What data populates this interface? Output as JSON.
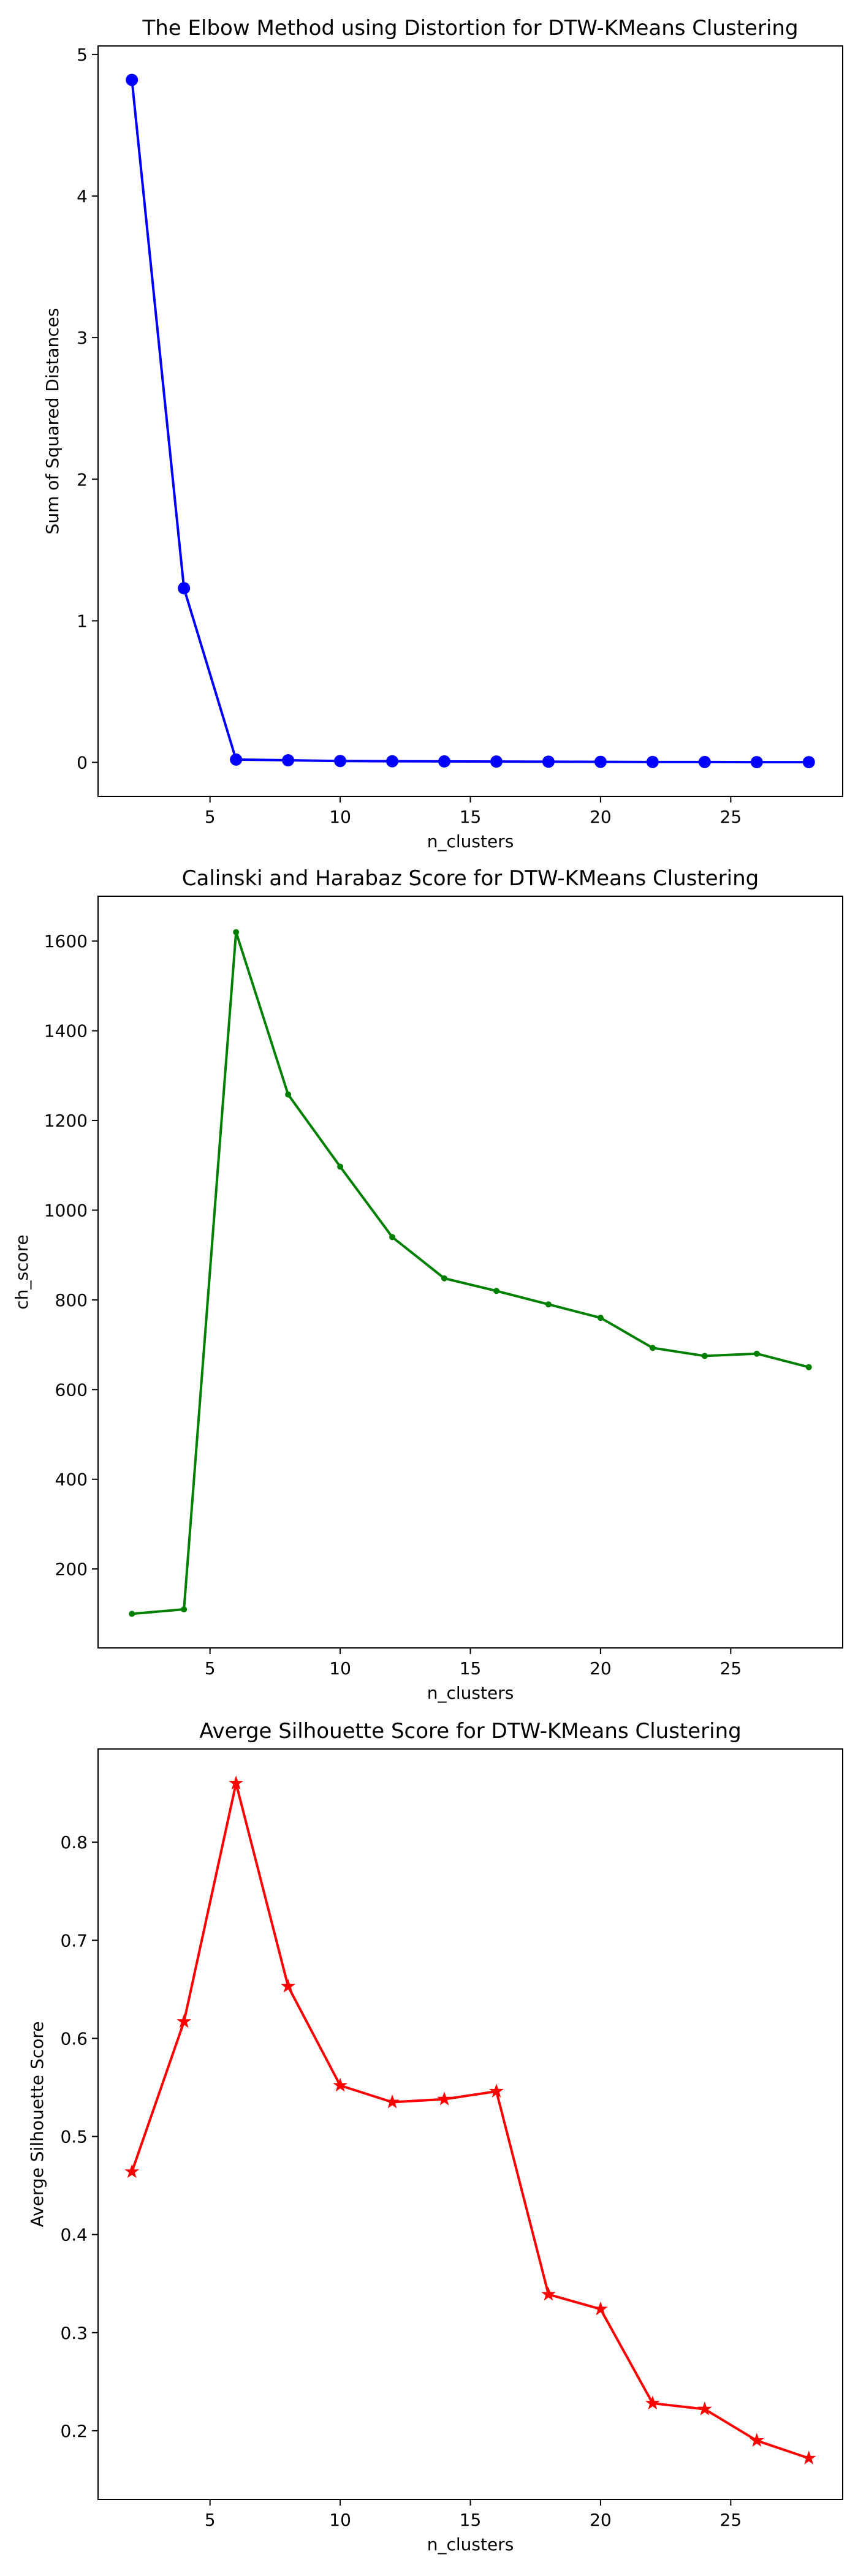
{
  "chart_data": [
    {
      "type": "line",
      "title": "The Elbow Method using Distortion for DTW-KMeans Clustering",
      "xlabel": "n_clusters",
      "ylabel": "Sum of Squared Distances",
      "xlim": [
        0.7,
        29.3
      ],
      "ylim": [
        -0.24,
        5.06
      ],
      "xticks": [
        5,
        10,
        15,
        20,
        25
      ],
      "yticks": [
        0,
        1,
        2,
        3,
        4,
        5
      ],
      "grid": false,
      "series": [
        {
          "color": "#0000ff",
          "marker": "circle",
          "x": [
            2,
            4,
            6,
            8,
            10,
            12,
            14,
            16,
            18,
            20,
            22,
            24,
            26,
            28
          ],
          "y": [
            4.82,
            1.23,
            0.02,
            0.015,
            0.01,
            0.008,
            0.007,
            0.006,
            0.005,
            0.004,
            0.003,
            0.003,
            0.002,
            0.002
          ]
        }
      ]
    },
    {
      "type": "line",
      "title": "Calinski and Harabaz Score for DTW-KMeans Clustering",
      "xlabel": "n_clusters",
      "ylabel": "ch_score",
      "xlim": [
        0.7,
        29.3
      ],
      "ylim": [
        24,
        1700
      ],
      "xticks": [
        5,
        10,
        15,
        20,
        25
      ],
      "yticks": [
        200,
        400,
        600,
        800,
        1000,
        1200,
        1400,
        1600
      ],
      "grid": false,
      "series": [
        {
          "color": "#008000",
          "marker": "point",
          "x": [
            2,
            4,
            6,
            8,
            10,
            12,
            14,
            16,
            18,
            20,
            22,
            24,
            26,
            28
          ],
          "y": [
            100,
            110,
            1620,
            1258,
            1097,
            940,
            848,
            820,
            790,
            760,
            693,
            675,
            680,
            650
          ]
        }
      ]
    },
    {
      "type": "line",
      "title": "Averge Silhouette Score for DTW-KMeans Clustering",
      "xlabel": "n_clusters",
      "ylabel": "Averge Silhouette Score",
      "xlim": [
        0.7,
        29.3
      ],
      "ylim": [
        0.13,
        0.895
      ],
      "xticks": [
        5,
        10,
        15,
        20,
        25
      ],
      "yticks": [
        0.2,
        0.3,
        0.4,
        0.5,
        0.6,
        0.7,
        0.8
      ],
      "grid": false,
      "series": [
        {
          "color": "#ff0000",
          "marker": "star",
          "x": [
            2,
            4,
            6,
            8,
            10,
            12,
            14,
            16,
            18,
            20,
            22,
            24,
            26,
            28
          ],
          "y": [
            0.464,
            0.617,
            0.86,
            0.653,
            0.552,
            0.535,
            0.538,
            0.546,
            0.339,
            0.324,
            0.228,
            0.222,
            0.19,
            0.172
          ]
        }
      ]
    }
  ]
}
